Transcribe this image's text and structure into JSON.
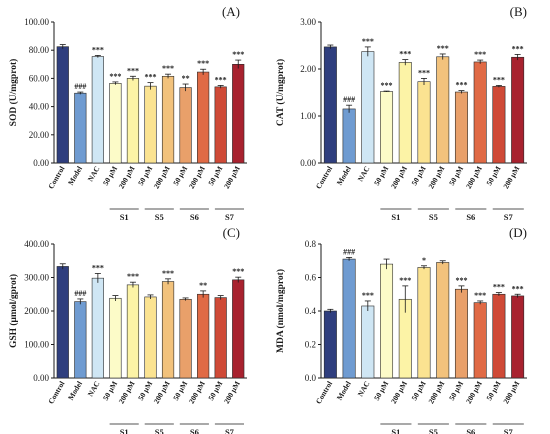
{
  "colors": {
    "bars": [
      "#2f3e7e",
      "#6f9bd1",
      "#cfe6f4",
      "#fcfbc8",
      "#fcf3a6",
      "#fbe391",
      "#f2c27c",
      "#e9a06a",
      "#e06a45",
      "#cf4a37",
      "#a8222f",
      "#8b1a2b"
    ],
    "sig_hash": "#5a8fbf",
    "sig_star": "#8f2335",
    "axis": "#1a1a1a"
  },
  "chart_data": [
    {
      "type": "bar",
      "panel_label": "(A)",
      "ylabel": "SOD (U/mgprot)",
      "ylim": [
        0,
        100
      ],
      "yticks": [
        "0.00",
        "20.00",
        "40.00",
        "60.00",
        "80.00",
        "100.00"
      ],
      "categories": [
        "Control",
        "Model",
        "NAC",
        "50 μM",
        "200 μM",
        "50 μM",
        "200 μM",
        "50 μM",
        "200 μM",
        "50 μM",
        "200 μM"
      ],
      "values": [
        82.5,
        49.5,
        75.5,
        56.5,
        60.0,
        54.5,
        61.5,
        53.5,
        64.5,
        54.0,
        70.0
      ],
      "errors": [
        1.5,
        0.8,
        0.8,
        1.0,
        1.5,
        2.5,
        1.5,
        2.5,
        2.0,
        1.0,
        3.0
      ],
      "significance": [
        "",
        "###",
        "***",
        "***",
        "***",
        "***",
        "***",
        "**",
        "***",
        "***",
        "***"
      ],
      "groups": [
        {
          "label": "S1",
          "from": 3,
          "to": 4
        },
        {
          "label": "S5",
          "from": 5,
          "to": 6
        },
        {
          "label": "S6",
          "from": 7,
          "to": 8
        },
        {
          "label": "S7",
          "from": 9,
          "to": 10
        }
      ]
    },
    {
      "type": "bar",
      "panel_label": "(B)",
      "ylabel": "CAT (U/mgprot)",
      "ylim": [
        0,
        3
      ],
      "yticks": [
        "0.00",
        "1.00",
        "2.00",
        "3.00"
      ],
      "categories": [
        "Control",
        "Model",
        "NAC",
        "50 μM",
        "200 μM",
        "50 μM",
        "200 μM",
        "50 μM",
        "200 μM",
        "50 μM",
        "200 μM"
      ],
      "values": [
        2.47,
        1.15,
        2.37,
        1.52,
        2.14,
        1.73,
        2.26,
        1.51,
        2.15,
        1.63,
        2.25
      ],
      "errors": [
        0.04,
        0.08,
        0.1,
        0.01,
        0.06,
        0.07,
        0.06,
        0.03,
        0.04,
        0.02,
        0.06
      ],
      "significance": [
        "",
        "###",
        "***",
        "***",
        "***",
        "***",
        "***",
        "***",
        "***",
        "***",
        "***"
      ],
      "groups": [
        {
          "label": "S1",
          "from": 3,
          "to": 4
        },
        {
          "label": "S5",
          "from": 5,
          "to": 6
        },
        {
          "label": "S6",
          "from": 7,
          "to": 8
        },
        {
          "label": "S7",
          "from": 9,
          "to": 10
        }
      ]
    },
    {
      "type": "bar",
      "panel_label": "(C)",
      "ylabel": "GSH (μmol/gprot)",
      "ylim": [
        0,
        400
      ],
      "yticks": [
        "0.00",
        "100.00",
        "200.00",
        "300.00",
        "400.00"
      ],
      "categories": [
        "Control",
        "Model",
        "NAC",
        "50 μM",
        "200 μM",
        "50 μM",
        "200 μM",
        "50 μM",
        "200 μM",
        "50 μM",
        "200 μM"
      ],
      "values": [
        333,
        228,
        298,
        238,
        278,
        242,
        288,
        235,
        250,
        240,
        293
      ],
      "errors": [
        8,
        8,
        14,
        8,
        8,
        6,
        8,
        4,
        10,
        6,
        8
      ],
      "significance": [
        "",
        "###",
        "***",
        "",
        "***",
        "",
        "***",
        "",
        "**",
        "",
        "***"
      ],
      "groups": [
        {
          "label": "S1",
          "from": 3,
          "to": 4
        },
        {
          "label": "S5",
          "from": 5,
          "to": 6
        },
        {
          "label": "S6",
          "from": 7,
          "to": 8
        },
        {
          "label": "S7",
          "from": 9,
          "to": 10
        }
      ]
    },
    {
      "type": "bar",
      "panel_label": "(D)",
      "ylabel": "MDA (nmol/mgprot)",
      "ylim": [
        0,
        0.8
      ],
      "yticks": [
        "0.0",
        "0.2",
        "0.4",
        "0.6",
        "0.8"
      ],
      "categories": [
        "Control",
        "Model",
        "NAC",
        "50 μM",
        "200 μM",
        "50 μM",
        "200 μM",
        "50 μM",
        "200 μM",
        "50 μM",
        "200 μM"
      ],
      "values": [
        0.4,
        0.71,
        0.43,
        0.68,
        0.47,
        0.66,
        0.69,
        0.53,
        0.45,
        0.5,
        0.49
      ],
      "errors": [
        0.01,
        0.01,
        0.03,
        0.03,
        0.08,
        0.01,
        0.01,
        0.02,
        0.01,
        0.01,
        0.01
      ],
      "significance": [
        "",
        "###",
        "***",
        "",
        "***",
        "*",
        "",
        "***",
        "***",
        "***",
        "***"
      ],
      "groups": [
        {
          "label": "S1",
          "from": 3,
          "to": 4
        },
        {
          "label": "S5",
          "from": 5,
          "to": 6
        },
        {
          "label": "S6",
          "from": 7,
          "to": 8
        },
        {
          "label": "S7",
          "from": 9,
          "to": 10
        }
      ]
    }
  ]
}
